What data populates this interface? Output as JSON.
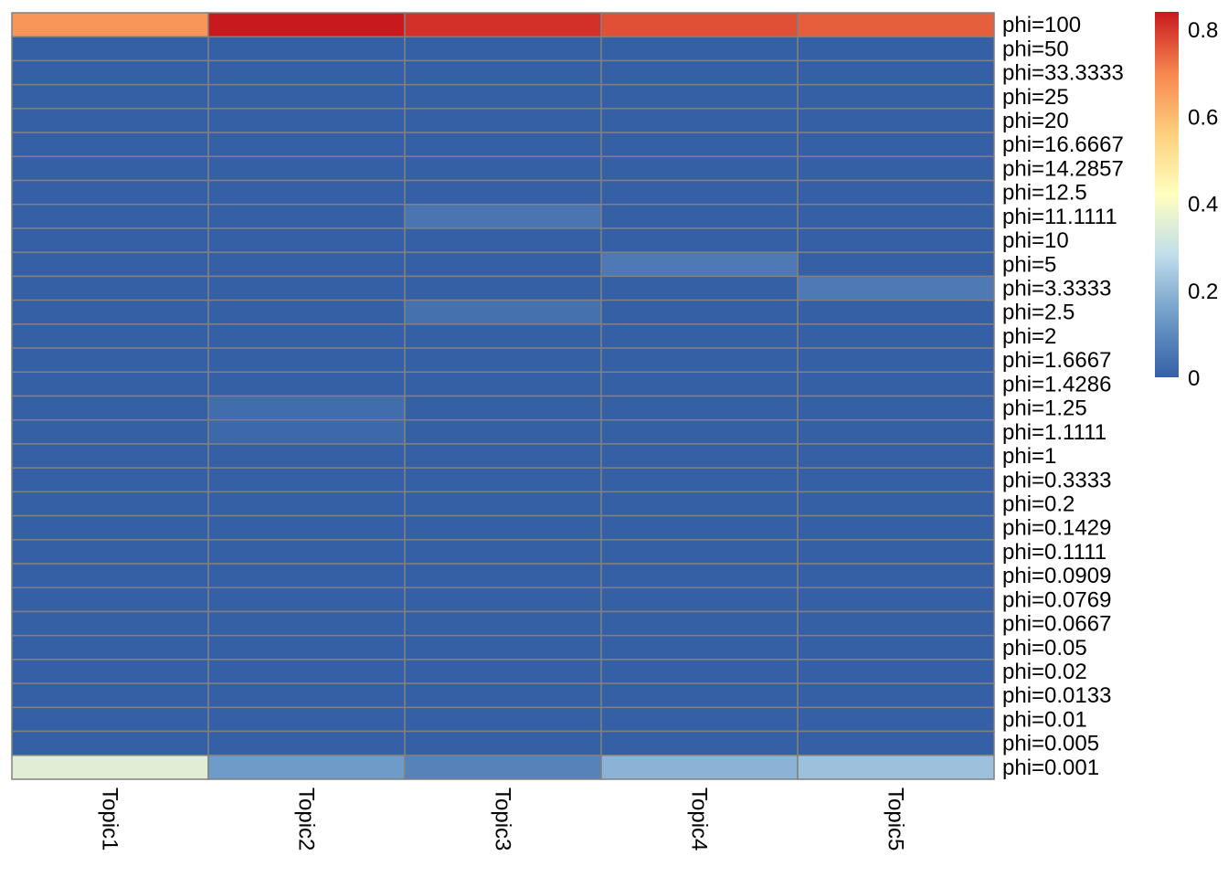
{
  "chart_data": {
    "type": "heatmap",
    "title": "",
    "columns": [
      "Topic1",
      "Topic2",
      "Topic3",
      "Topic4",
      "Topic5"
    ],
    "rows": [
      "phi=100",
      "phi=50",
      "phi=33.3333",
      "phi=25",
      "phi=20",
      "phi=16.6667",
      "phi=14.2857",
      "phi=12.5",
      "phi=11.1111",
      "phi=10",
      "phi=5",
      "phi=3.3333",
      "phi=2.5",
      "phi=2",
      "phi=1.6667",
      "phi=1.4286",
      "phi=1.25",
      "phi=1.1111",
      "phi=1",
      "phi=0.3333",
      "phi=0.2",
      "phi=0.1429",
      "phi=0.1111",
      "phi=0.0909",
      "phi=0.0769",
      "phi=0.0667",
      "phi=0.05",
      "phi=0.02",
      "phi=0.0133",
      "phi=0.01",
      "phi=0.005",
      "phi=0.001"
    ],
    "values": [
      [
        0.67,
        0.84,
        0.81,
        0.77,
        0.75
      ],
      [
        0,
        0,
        0,
        0,
        0
      ],
      [
        0,
        0,
        0,
        0,
        0
      ],
      [
        0,
        0,
        0,
        0,
        0
      ],
      [
        0,
        0,
        0,
        0,
        0
      ],
      [
        0,
        0,
        0,
        0,
        0
      ],
      [
        0,
        0,
        0,
        0,
        0
      ],
      [
        0,
        0,
        0,
        0,
        0
      ],
      [
        0,
        0,
        0.05,
        0,
        0
      ],
      [
        0,
        0,
        0,
        0,
        0
      ],
      [
        0,
        0,
        0,
        0.06,
        0
      ],
      [
        0,
        0,
        0,
        0,
        0.06
      ],
      [
        0,
        0,
        0.04,
        0,
        0
      ],
      [
        0,
        0,
        0,
        0,
        0
      ],
      [
        0,
        0,
        0,
        0,
        0
      ],
      [
        0,
        0,
        0,
        0,
        0
      ],
      [
        0,
        0.03,
        0,
        0,
        0
      ],
      [
        0,
        0.02,
        0,
        0,
        0
      ],
      [
        0,
        0,
        0,
        0,
        0
      ],
      [
        0,
        0,
        0,
        0,
        0
      ],
      [
        0,
        0,
        0,
        0,
        0
      ],
      [
        0,
        0,
        0,
        0,
        0
      ],
      [
        0,
        0,
        0,
        0,
        0
      ],
      [
        0,
        0,
        0,
        0,
        0
      ],
      [
        0,
        0,
        0,
        0,
        0
      ],
      [
        0,
        0,
        0,
        0,
        0
      ],
      [
        0,
        0,
        0,
        0,
        0
      ],
      [
        0,
        0,
        0,
        0,
        0
      ],
      [
        0,
        0,
        0,
        0,
        0
      ],
      [
        0,
        0,
        0,
        0,
        0
      ],
      [
        0,
        0,
        0,
        0,
        0
      ],
      [
        0.35,
        0.14,
        0.08,
        0.19,
        0.22
      ]
    ],
    "color_range": [
      0,
      0.84
    ],
    "palette": [
      "#3560A5",
      "#6F9BC8",
      "#BFDDEB",
      "#FFFFBF",
      "#FDD07E",
      "#F7864F",
      "#C8191E"
    ],
    "border_color": "#808080",
    "legend": {
      "position": "right",
      "ticks": [
        0,
        0.2,
        0.4,
        0.6,
        0.8
      ],
      "tick_labels": [
        "0",
        "0.2",
        "0.4",
        "0.6",
        "0.8"
      ]
    }
  }
}
